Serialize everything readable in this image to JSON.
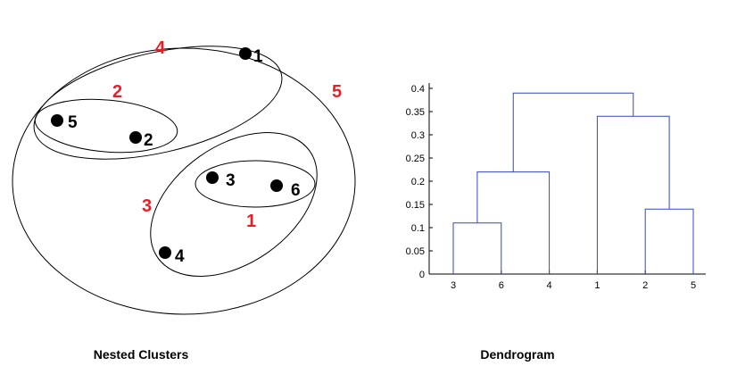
{
  "nested_clusters": {
    "caption": "Nested Clusters",
    "points": [
      "1",
      "2",
      "3",
      "4",
      "5",
      "6"
    ],
    "cluster_labels": [
      "1",
      "2",
      "3",
      "4",
      "5"
    ],
    "colors": {
      "label": "#ee1c24",
      "point": "#000000",
      "outline": "#000000"
    }
  },
  "dendrogram": {
    "caption": "Dendrogram",
    "colors": {
      "link": "#3346c6",
      "axis": "#000000"
    },
    "yticks": [
      "0",
      "0.05",
      "0.1",
      "0.15",
      "0.2",
      "0.25",
      "0.3",
      "0.35",
      "0.4"
    ]
  },
  "chart_data": {
    "type": "dendrogram",
    "title": "Dendrogram",
    "xlabel": "",
    "ylabel": "",
    "leaf_order": [
      "3",
      "6",
      "4",
      "1",
      "2",
      "5"
    ],
    "ylim": [
      0,
      0.4
    ],
    "merges": [
      {
        "left": "3",
        "right": "6",
        "height": 0.11
      },
      {
        "left": "2",
        "right": "5",
        "height": 0.14
      },
      {
        "left": "3,6",
        "right": "4",
        "height": 0.22
      },
      {
        "left": "1",
        "right": "2,5",
        "height": 0.34
      },
      {
        "left": "3,6,4",
        "right": "1,2,5",
        "height": 0.39
      }
    ]
  }
}
